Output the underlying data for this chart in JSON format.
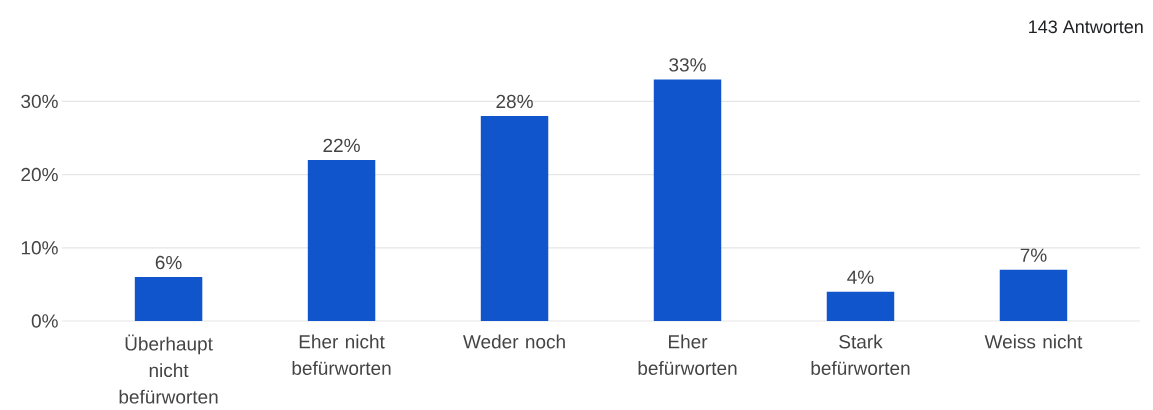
{
  "chart_data": {
    "type": "bar",
    "annotations": [
      "143 Antworten"
    ],
    "categories": [
      "Überhaupt nicht befürworten",
      "Eher nicht befürworten",
      "Weder noch",
      "Eher befürworten",
      "Stark befürworten",
      "Weiss nicht"
    ],
    "values": [
      6,
      22,
      28,
      33,
      4,
      7
    ],
    "value_labels": [
      "6%",
      "22%",
      "28%",
      "33%",
      "4%",
      "7%"
    ],
    "color": "#1155cc",
    "ylim": [
      0,
      33
    ],
    "yticks": [
      {
        "value": 0,
        "label": "0%"
      },
      {
        "value": 10,
        "label": "10%"
      },
      {
        "value": 20,
        "label": "20%"
      },
      {
        "value": 30,
        "label": "30%"
      }
    ],
    "grid": "y"
  }
}
